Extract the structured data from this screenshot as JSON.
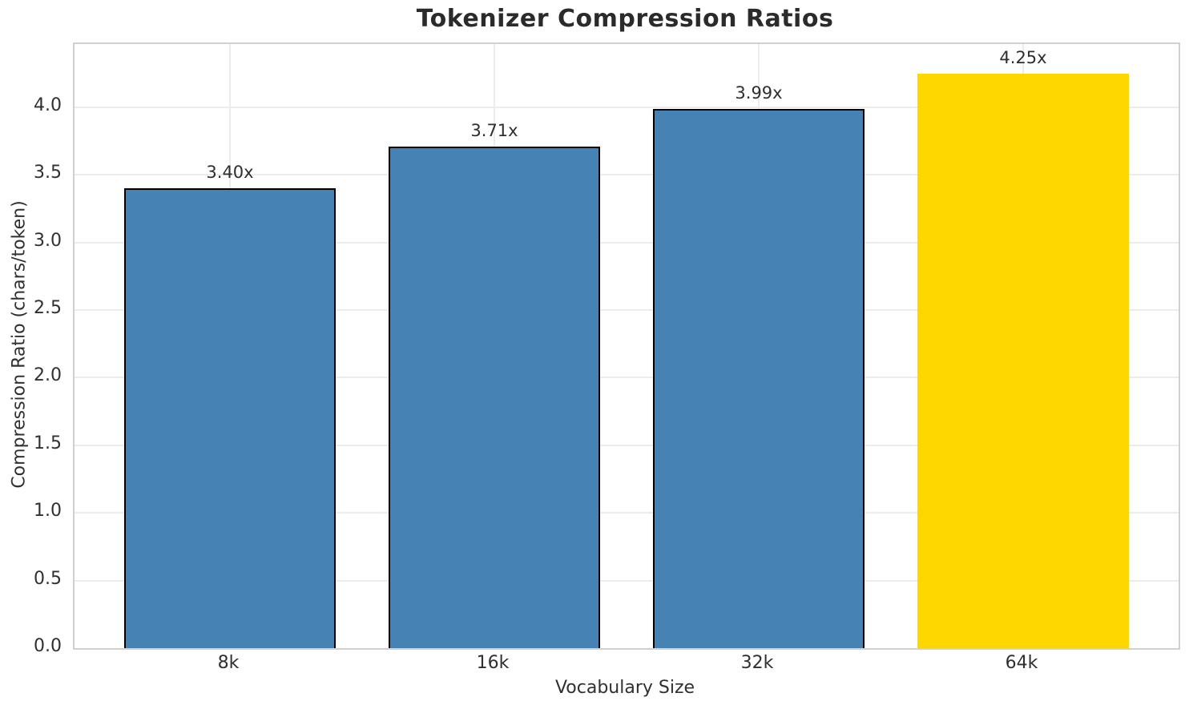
{
  "chart_data": {
    "type": "bar",
    "title": "Tokenizer Compression Ratios",
    "xlabel": "Vocabulary Size",
    "ylabel": "Compression Ratio (chars/token)",
    "categories": [
      "8k",
      "16k",
      "32k",
      "64k"
    ],
    "values": [
      3.4,
      3.71,
      3.99,
      4.25
    ],
    "bar_labels": [
      "3.40x",
      "3.71x",
      "3.99x",
      "4.25x"
    ],
    "bar_colors": [
      "#4682B4",
      "#4682B4",
      "#4682B4",
      "#FFD700"
    ],
    "bar_edge_colors": [
      "#000000",
      "#000000",
      "#000000",
      "none"
    ],
    "ylim": [
      0,
      4.468
    ],
    "y_ticks": [
      "0.0",
      "0.5",
      "1.0",
      "1.5",
      "2.0",
      "2.5",
      "3.0",
      "3.5",
      "4.0"
    ],
    "grid": "both",
    "legend_position": "none",
    "colors": {
      "default_bar": "#4682B4",
      "highlight_bar": "#FFD700",
      "bar_edge": "#000000",
      "grid": "#ececec",
      "spine": "#d0d0d0",
      "text": "#303030",
      "title_text": "#2b2b2b"
    }
  }
}
